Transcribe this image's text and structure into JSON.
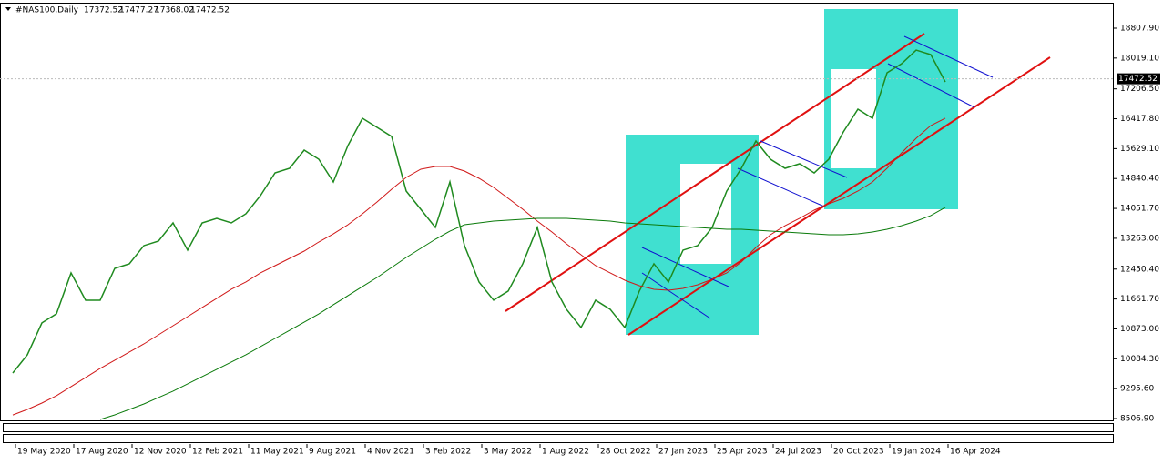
{
  "chart_data": {
    "type": "line",
    "symbol": "#NAS100,Daily",
    "ohlc": [
      17372.52,
      17477.27,
      17368.02,
      17472.52
    ],
    "current_price": 17472.52,
    "x": [
      null,
      "19 May 2020",
      null,
      null,
      null,
      "17 Aug 2020",
      null,
      null,
      null,
      "12 Nov 2020",
      null,
      null,
      null,
      "12 Feb 2021",
      null,
      null,
      null,
      "11 May 2021",
      null,
      null,
      null,
      "9 Aug 2021",
      null,
      null,
      null,
      "4 Nov 2021",
      null,
      null,
      null,
      "3 Feb 2022",
      null,
      null,
      null,
      "3 May 2022",
      null,
      null,
      null,
      "1 Aug 2022",
      null,
      null,
      null,
      "28 Oct 2022",
      null,
      null,
      null,
      "27 Jan 2023",
      null,
      null,
      null,
      "25 Apr 2023",
      null,
      null,
      null,
      "24 Jul 2023",
      null,
      null,
      null,
      "20 Oct 2023",
      null,
      null,
      null,
      "19 Jan 2024",
      null,
      null,
      null,
      "16 Apr 2024",
      null,
      null,
      null,
      null,
      null,
      null,
      null,
      null,
      null,
      null
    ],
    "series": [
      {
        "color": "#1f8a1f",
        "values": [
          9707,
          10188,
          11030,
          11270,
          12349,
          11629,
          11629,
          12469,
          12589,
          13070,
          13190,
          13670,
          12950,
          13670,
          13790,
          13670,
          13910,
          14390,
          14990,
          15110,
          15590,
          15350,
          14750,
          15710,
          16430,
          16190,
          15950,
          14510,
          14030,
          13550,
          14750,
          13070,
          12109,
          11630,
          11870,
          12590,
          13550,
          12109,
          11390,
          10910,
          11630,
          11390,
          10910,
          11870,
          12590,
          12109,
          12950,
          13070,
          13550,
          14510,
          15110,
          15830,
          15350,
          15110,
          15230,
          14990,
          15350,
          16070,
          16670,
          16430,
          17630,
          17870,
          18230,
          18110,
          17390,
          null,
          null,
          null,
          null,
          null,
          null,
          null,
          null,
          null,
          null,
          null
        ]
      },
      {
        "color": "#d01818",
        "values": [
          8600,
          8747,
          8915,
          9108,
          9348,
          9588,
          9828,
          10044,
          10260,
          10476,
          10716,
          10956,
          11196,
          11437,
          11677,
          11917,
          12109,
          12349,
          12541,
          12733,
          12925,
          13165,
          13381,
          13621,
          13910,
          14222,
          14558,
          14870,
          15086,
          15158,
          15158,
          15038,
          14846,
          14606,
          14318,
          14030,
          13718,
          13429,
          13117,
          12829,
          12541,
          12349,
          12157,
          12013,
          11917,
          11893,
          11941,
          12037,
          12181,
          12349,
          12637,
          13021,
          13357,
          13597,
          13790,
          14006,
          14174,
          14318,
          14510,
          14750,
          15110,
          15518,
          15902,
          16238,
          16431,
          null,
          null,
          null,
          null,
          null,
          null,
          null,
          null,
          null,
          null,
          null
        ]
      },
      {
        "color": "#0a7a0a",
        "values": [
          null,
          null,
          null,
          null,
          null,
          null,
          8483,
          8603,
          8747,
          8891,
          9060,
          9228,
          9420,
          9612,
          9804,
          9996,
          10188,
          10404,
          10620,
          10836,
          11052,
          11268,
          11509,
          11749,
          11989,
          12229,
          12493,
          12757,
          12997,
          13237,
          13453,
          13621,
          13669,
          13718,
          13742,
          13766,
          13790,
          13790,
          13790,
          13766,
          13742,
          13718,
          13669,
          13645,
          13621,
          13597,
          13573,
          13549,
          13525,
          13501,
          13501,
          13477,
          13453,
          13429,
          13405,
          13381,
          13357,
          13357,
          13381,
          13429,
          13501,
          13597,
          13718,
          13862,
          14078,
          null,
          null,
          null,
          null,
          null,
          null,
          null,
          null,
          null,
          null,
          null
        ]
      }
    ],
    "ylim": [
      8459,
      19480
    ],
    "yticks": [
      {
        "value": 18807.9,
        "label": "18807.90"
      },
      {
        "value": 18019.1,
        "label": "18019.10"
      },
      {
        "value": 17206.5,
        "label": "17206.50"
      },
      {
        "value": 16417.8,
        "label": "16417.80"
      },
      {
        "value": 15629.1,
        "label": "15629.10"
      },
      {
        "value": 14840.4,
        "label": "14840.40"
      },
      {
        "value": 14051.7,
        "label": "14051.70"
      },
      {
        "value": 13263,
        "label": "13263.00"
      },
      {
        "value": 12450.4,
        "label": "12450.40"
      },
      {
        "value": 11661.7,
        "label": "11661.70"
      },
      {
        "value": 10873,
        "label": "10873.00"
      },
      {
        "value": 10084.3,
        "label": "10084.30"
      },
      {
        "value": 9295.6,
        "label": "9295.60"
      },
      {
        "value": 8506.9,
        "label": "8506.90"
      }
    ],
    "grid": false
  }
}
